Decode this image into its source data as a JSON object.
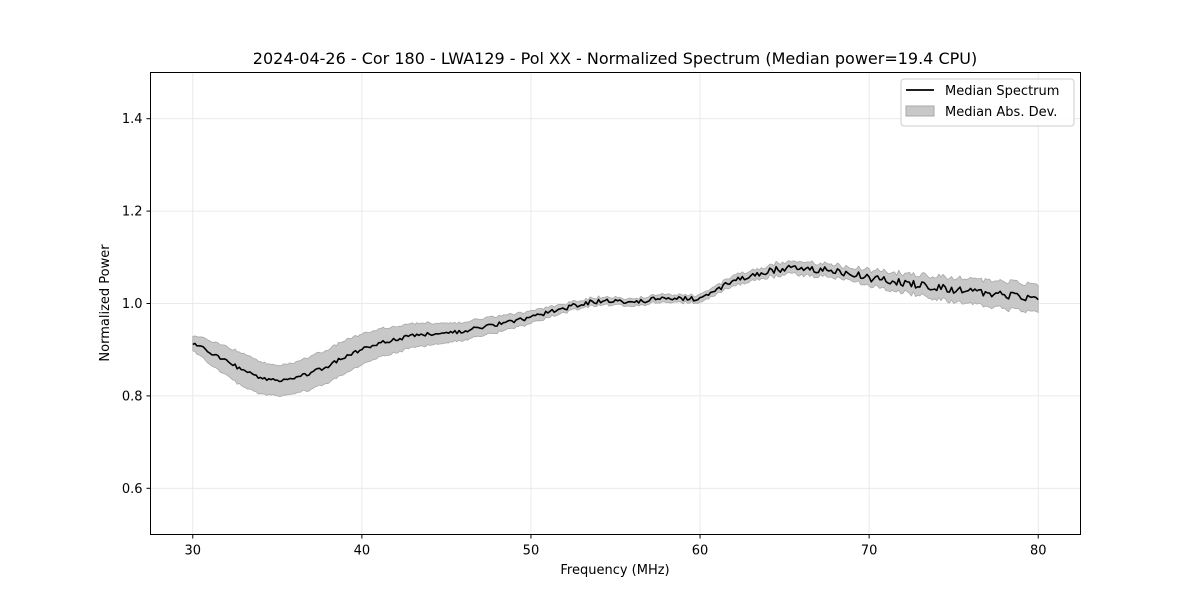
{
  "chart_data": {
    "type": "line",
    "title": "2024-04-26 - Cor 180 - LWA129 - Pol XX - Normalized Spectrum (Median power=19.4 CPU)",
    "xlabel": "Frequency (MHz)",
    "ylabel": "Normalized Power",
    "xlim": [
      27.5,
      82.5
    ],
    "ylim": [
      0.5,
      1.5
    ],
    "xticks": [
      30,
      40,
      50,
      60,
      70,
      80
    ],
    "yticks": [
      0.6,
      0.8,
      1.0,
      1.2,
      1.4
    ],
    "xtick_labels": [
      "30",
      "40",
      "50",
      "60",
      "70",
      "80"
    ],
    "ytick_labels": [
      "0.6",
      "0.8",
      "1.0",
      "1.2",
      "1.4"
    ],
    "grid": true,
    "legend_position": "top-right",
    "colors": {
      "line": "#000000",
      "band": "#c8c8c8",
      "band_edge": "#a8a8a8",
      "grid": "#e5e5e5"
    },
    "series": [
      {
        "name": "Median Spectrum",
        "kind": "line",
        "x": [
          30,
          31,
          32,
          33,
          34,
          35,
          36,
          37,
          38,
          39,
          40,
          41,
          42,
          43,
          44,
          45,
          46,
          47,
          48,
          49,
          50,
          51,
          52,
          53,
          54,
          55,
          56,
          57,
          58,
          59,
          60,
          61,
          62,
          63,
          64,
          65,
          66,
          67,
          68,
          69,
          70,
          71,
          72,
          73,
          74,
          75,
          76,
          77,
          78,
          79,
          80
        ],
        "y": [
          0.915,
          0.895,
          0.875,
          0.855,
          0.838,
          0.832,
          0.838,
          0.85,
          0.865,
          0.885,
          0.9,
          0.915,
          0.922,
          0.93,
          0.935,
          0.935,
          0.94,
          0.948,
          0.955,
          0.962,
          0.97,
          0.98,
          0.99,
          1.0,
          1.005,
          1.005,
          1.0,
          1.008,
          1.012,
          1.01,
          1.01,
          1.03,
          1.05,
          1.06,
          1.068,
          1.078,
          1.076,
          1.074,
          1.07,
          1.065,
          1.055,
          1.05,
          1.045,
          1.04,
          1.035,
          1.03,
          1.025,
          1.022,
          1.018,
          1.015,
          1.012
        ]
      },
      {
        "name": "Median Abs. Dev.",
        "kind": "band",
        "x": [
          30,
          31,
          32,
          33,
          34,
          35,
          36,
          37,
          38,
          39,
          40,
          41,
          42,
          43,
          44,
          45,
          46,
          47,
          48,
          49,
          50,
          51,
          52,
          53,
          54,
          55,
          56,
          57,
          58,
          59,
          60,
          61,
          62,
          63,
          64,
          65,
          66,
          67,
          68,
          69,
          70,
          71,
          72,
          73,
          74,
          75,
          76,
          77,
          78,
          79,
          80
        ],
        "lower": [
          0.9,
          0.87,
          0.845,
          0.82,
          0.805,
          0.8,
          0.805,
          0.815,
          0.83,
          0.85,
          0.868,
          0.885,
          0.895,
          0.905,
          0.912,
          0.915,
          0.922,
          0.93,
          0.938,
          0.948,
          0.958,
          0.97,
          0.982,
          0.993,
          0.998,
          0.998,
          0.993,
          1.001,
          1.005,
          1.003,
          1.003,
          1.022,
          1.04,
          1.05,
          1.058,
          1.066,
          1.064,
          1.062,
          1.058,
          1.053,
          1.04,
          1.033,
          1.027,
          1.02,
          1.013,
          1.007,
          1.0,
          0.995,
          0.991,
          0.988,
          0.985
        ],
        "upper": [
          0.93,
          0.92,
          0.905,
          0.89,
          0.872,
          0.864,
          0.871,
          0.885,
          0.9,
          0.92,
          0.932,
          0.945,
          0.949,
          0.955,
          0.958,
          0.955,
          0.958,
          0.966,
          0.972,
          0.976,
          0.982,
          0.99,
          0.998,
          1.007,
          1.012,
          1.012,
          1.007,
          1.015,
          1.019,
          1.017,
          1.017,
          1.038,
          1.06,
          1.07,
          1.078,
          1.09,
          1.088,
          1.086,
          1.082,
          1.077,
          1.07,
          1.067,
          1.063,
          1.06,
          1.057,
          1.053,
          1.05,
          1.049,
          1.045,
          1.042,
          1.039
        ]
      }
    ]
  }
}
